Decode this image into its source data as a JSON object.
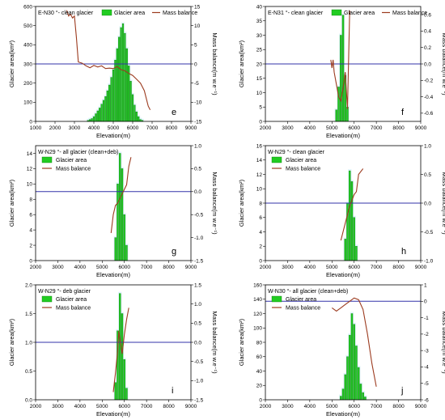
{
  "chart_data": [
    {
      "id": "e",
      "type": "bar",
      "panel_letter": "e",
      "title": "E-N30 °- clean glacier",
      "legend": [
        "Glacier area",
        "Mass balance"
      ],
      "legend_style": "inline-top",
      "xlabel": "Elevation(m)",
      "ylabel": "Glacier area(km²)",
      "y2label": "Mass balance(m w.e⁻¹)",
      "xlim": [
        1000,
        9000
      ],
      "xticks": [
        1000,
        2000,
        3000,
        4000,
        5000,
        6000,
        7000,
        8000,
        9000
      ],
      "ylim": [
        0,
        600
      ],
      "yticks": [
        0,
        100,
        200,
        300,
        400,
        500,
        600
      ],
      "y2lim": [
        -15,
        15
      ],
      "y2ticks": [
        -15,
        -10,
        -5,
        0,
        5,
        10,
        15
      ],
      "bars": {
        "name": "Glacier area",
        "x": [
          3700,
          3800,
          3900,
          4000,
          4100,
          4200,
          4300,
          4400,
          4500,
          4600,
          4700,
          4800,
          4900,
          5000,
          5100,
          5200,
          5300,
          5400,
          5500,
          5600,
          5700,
          5800,
          5900,
          6000,
          6100,
          6200,
          6300,
          6400,
          6500
        ],
        "y": [
          5,
          10,
          15,
          25,
          40,
          55,
          70,
          90,
          110,
          130,
          160,
          190,
          230,
          270,
          320,
          380,
          440,
          490,
          510,
          460,
          380,
          290,
          210,
          140,
          85,
          50,
          25,
          10,
          5
        ]
      },
      "line": {
        "name": "Mass balance",
        "x": [
          2600,
          2700,
          2800,
          2900,
          3000,
          3100,
          3200,
          3400,
          3600,
          3800,
          4000,
          4200,
          4400,
          4600,
          4800,
          5000,
          5200,
          5400,
          5600,
          5800,
          6000,
          6200,
          6400,
          6600,
          6800,
          6900
        ],
        "y": [
          14,
          12.5,
          13,
          12,
          12.5,
          7,
          0.5,
          0.2,
          -0.5,
          -1,
          -0.4,
          -0.8,
          -0.5,
          -1.2,
          -1.1,
          -1.2,
          -0.7,
          -1.5,
          -1.8,
          -2.5,
          -3,
          -4,
          -5,
          -7,
          -11,
          -12
        ]
      },
      "hline": 0
    },
    {
      "id": "f",
      "type": "bar",
      "panel_letter": "f",
      "title": "E-N31 °- clean glacier",
      "legend": [
        "Glacier area",
        "Mass balance"
      ],
      "legend_style": "inline-top",
      "xlabel": "Elevation(m)",
      "ylabel": "Glacier area(km²)",
      "y2label": "Mass balance(m w.e⁻¹)",
      "xlim": [
        2000,
        9000
      ],
      "xticks": [
        2000,
        3000,
        4000,
        5000,
        6000,
        7000,
        8000,
        9000
      ],
      "ylim": [
        0,
        40
      ],
      "yticks": [
        0,
        5,
        10,
        15,
        20,
        25,
        30,
        35,
        40
      ],
      "y2lim": [
        -0.7,
        0.7
      ],
      "y2ticks": [
        -0.6,
        -0.4,
        -0.2,
        0.0,
        0.2,
        0.4,
        0.6
      ],
      "bars": {
        "name": "Glacier area",
        "x": [
          5200,
          5300,
          5400,
          5500,
          5600,
          5700
        ],
        "y": [
          4,
          12,
          30,
          37,
          16,
          5
        ]
      },
      "line": {
        "name": "Mass balance",
        "x": [
          4950,
          5000,
          5050,
          5100,
          5200,
          5300,
          5400,
          5500,
          5600,
          5700,
          5800
        ],
        "y": [
          0.05,
          -0.05,
          0.05,
          -0.1,
          -0.25,
          -0.4,
          -0.45,
          -0.3,
          -0.1,
          -0.55,
          0.65
        ]
      },
      "hline": 0
    },
    {
      "id": "g",
      "type": "bar",
      "panel_letter": "g",
      "title": "W-N29 °- all glacier (clean+deb)",
      "legend": [
        "Glacier area",
        "Mass balance"
      ],
      "legend_style": "stacked",
      "xlabel": "Elevation(m)",
      "ylabel": "Glacier area(km²)",
      "y2label": "Mass balance(m w.e⁻¹)",
      "xlim": [
        2000,
        9000
      ],
      "xticks": [
        2000,
        3000,
        4000,
        5000,
        6000,
        7000,
        8000,
        9000
      ],
      "ylim": [
        0,
        15
      ],
      "yticks": [
        0,
        2,
        4,
        6,
        8,
        10,
        12,
        14
      ],
      "y2lim": [
        -1.5,
        1.0
      ],
      "y2ticks": [
        -1.5,
        -1.0,
        -0.5,
        0.0,
        0.5,
        1.0
      ],
      "bars": {
        "name": "Glacier area",
        "x": [
          5600,
          5700,
          5800,
          5900,
          6000,
          6100
        ],
        "y": [
          3,
          10,
          14,
          12,
          6,
          2
        ]
      },
      "line": {
        "name": "Mass balance",
        "x": [
          5400,
          5500,
          5600,
          5700,
          5800,
          5900,
          6000,
          6100,
          6200,
          6300
        ],
        "y": [
          -0.9,
          -0.5,
          -0.3,
          -0.25,
          -0.15,
          -0.05,
          0.05,
          0.15,
          0.55,
          0.75
        ]
      },
      "hline": 0
    },
    {
      "id": "h",
      "type": "bar",
      "panel_letter": "h",
      "title": "W-N29 °- clean glacier",
      "legend": [
        "Glacier area",
        "Mass balance"
      ],
      "legend_style": "stacked",
      "xlabel": "Elevation(m)",
      "ylabel": "Glacier area(km²)",
      "y2label": "Mass balance(m w.e⁻¹)",
      "xlim": [
        2000,
        9000
      ],
      "xticks": [
        2000,
        3000,
        4000,
        5000,
        6000,
        7000,
        8000,
        9000
      ],
      "ylim": [
        0,
        16
      ],
      "yticks": [
        0,
        2,
        4,
        6,
        8,
        10,
        12,
        14,
        16
      ],
      "y2lim": [
        -1.0,
        1.0
      ],
      "y2ticks": [
        -1.0,
        -0.5,
        0.0,
        0.5,
        1.0
      ],
      "bars": {
        "name": "Glacier area",
        "x": [
          5600,
          5700,
          5800,
          5900,
          6000,
          6100
        ],
        "y": [
          3,
          8,
          12.5,
          11,
          6,
          2
        ]
      },
      "line": {
        "name": "Mass balance",
        "x": [
          5400,
          5500,
          5600,
          5700,
          5800,
          5900,
          6000,
          6100,
          6200,
          6400
        ],
        "y": [
          -0.65,
          -0.5,
          -0.35,
          -0.2,
          -0.05,
          0.05,
          0.15,
          0.2,
          0.5,
          0.6
        ]
      },
      "hline": 0
    },
    {
      "id": "i",
      "type": "bar",
      "panel_letter": "i",
      "title": "W-N29 °- deb glacier",
      "legend": [
        "Glacier area",
        "Mass balance"
      ],
      "legend_style": "stacked",
      "xlabel": "Elevation(m)",
      "ylabel": "Glacier area(km²)",
      "y2label": "Mass balance(m w.e⁻¹)",
      "xlim": [
        2000,
        9000
      ],
      "xticks": [
        2000,
        3000,
        4000,
        5000,
        6000,
        7000,
        8000,
        9000
      ],
      "ylim": [
        0,
        2.0
      ],
      "yticks": [
        0.0,
        0.5,
        1.0,
        1.5,
        2.0
      ],
      "y2lim": [
        -1.5,
        1.5
      ],
      "y2ticks": [
        -1.5,
        -1.0,
        -0.5,
        0.0,
        0.5,
        1.0,
        1.5
      ],
      "bars": {
        "name": "Glacier area",
        "x": [
          5600,
          5700,
          5800,
          5900,
          6000,
          6100
        ],
        "y": [
          0.3,
          1.2,
          1.85,
          1.5,
          0.7,
          0.2
        ]
      },
      "line": {
        "name": "Mass balance",
        "x": [
          5500,
          5600,
          5700,
          5750,
          5800,
          5900,
          6000,
          6100,
          6200
        ],
        "y": [
          -1.3,
          -0.8,
          -0.2,
          0.3,
          0.1,
          -0.3,
          0.2,
          0.6,
          0.9
        ]
      },
      "hline": 0
    },
    {
      "id": "j",
      "type": "bar",
      "panel_letter": "j",
      "title": "W-N30 °- all glacier (clean+deb)",
      "legend": [
        "Glacier area",
        "Mass balance"
      ],
      "legend_style": "stacked",
      "xlabel": "Elevation(m)",
      "ylabel": "Glacier area(km²)",
      "y2label": "Mass balance(m w.e⁻¹)",
      "xlim": [
        2000,
        9000
      ],
      "xticks": [
        2000,
        3000,
        4000,
        5000,
        6000,
        7000,
        8000,
        9000
      ],
      "ylim": [
        0,
        160
      ],
      "yticks": [
        0,
        20,
        40,
        60,
        80,
        100,
        120,
        140,
        160
      ],
      "y2lim": [
        -6,
        1
      ],
      "y2ticks": [
        -6,
        -5,
        -4,
        -3,
        -2,
        -1,
        0,
        1
      ],
      "bars": {
        "name": "Glacier area",
        "x": [
          5400,
          5500,
          5600,
          5700,
          5800,
          5900,
          6000,
          6100,
          6200,
          6300,
          6400,
          6500
        ],
        "y": [
          5,
          15,
          35,
          60,
          90,
          120,
          105,
          75,
          45,
          22,
          10,
          4
        ]
      },
      "line": {
        "name": "Mass balance",
        "x": [
          5000,
          5200,
          5400,
          5600,
          5800,
          6000,
          6200,
          6400,
          6600,
          6800,
          7000
        ],
        "y": [
          -0.4,
          -0.6,
          -0.4,
          -0.2,
          0.0,
          0.2,
          0.1,
          -0.5,
          -2.0,
          -3.8,
          -5.2
        ]
      },
      "hline": 0
    }
  ],
  "colors": {
    "bar": "#22cc22",
    "bar_edge": "#0b7a0b",
    "bar_halo": "#c8ecf6",
    "line": "#9c3b1f",
    "hline": "#3333aa",
    "axis": "#000000"
  }
}
